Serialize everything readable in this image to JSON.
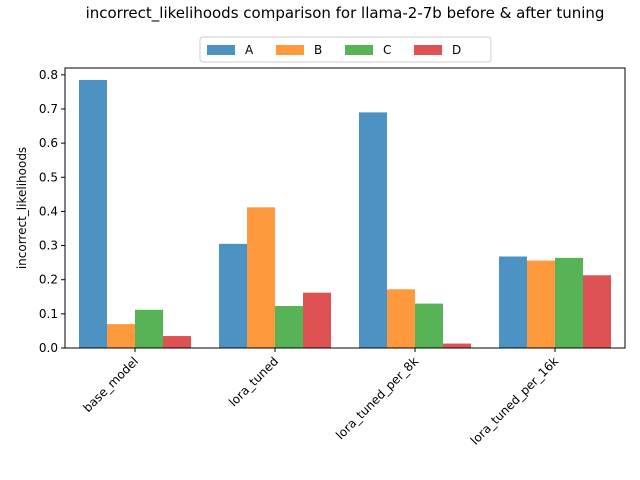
{
  "chart_data": {
    "type": "bar",
    "title": "incorrect_likelihoods comparison for llama-2-7b before & after tuning",
    "xlabel": "",
    "ylabel": "incorrect_likelihoods",
    "categories": [
      "base_model",
      "lora_tuned",
      "lora_tuned_per_8k",
      "lora_tuned_per_16k"
    ],
    "series": [
      {
        "name": "A",
        "color": "#1f77b4",
        "values": [
          0.785,
          0.305,
          0.69,
          0.268
        ]
      },
      {
        "name": "B",
        "color": "#ff7f0e",
        "values": [
          0.07,
          0.412,
          0.172,
          0.256
        ]
      },
      {
        "name": "C",
        "color": "#2ca02c",
        "values": [
          0.112,
          0.123,
          0.13,
          0.264
        ]
      },
      {
        "name": "D",
        "color": "#d62728",
        "values": [
          0.035,
          0.162,
          0.013,
          0.213
        ]
      }
    ],
    "ylim": [
      0,
      0.82
    ],
    "yticks": [
      "0.0",
      "0.1",
      "0.2",
      "0.3",
      "0.4",
      "0.5",
      "0.6",
      "0.7",
      "0.8"
    ],
    "legend_position": "top-center",
    "grid": false
  }
}
